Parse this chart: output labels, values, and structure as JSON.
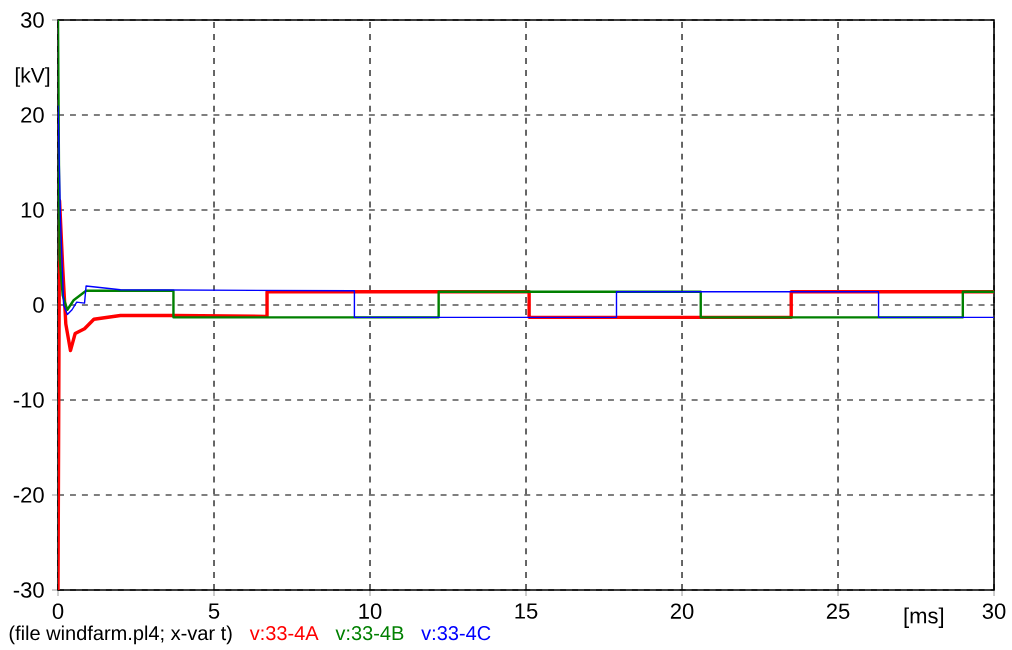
{
  "chart_data": {
    "type": "line",
    "ylabel": "[kV]",
    "xlabel": "[ms]",
    "annotations": [
      "(file windfarm.pl4; x-var t)"
    ],
    "xlim": [
      0,
      30
    ],
    "ylim": [
      -30,
      30
    ],
    "xticks": [
      0,
      5,
      10,
      15,
      20,
      25,
      30
    ],
    "yticks": [
      -30,
      -20,
      -10,
      0,
      10,
      20,
      30
    ],
    "grid": true,
    "legend": "bottom",
    "marker": "none",
    "line_style": "solid",
    "series": [
      {
        "name": "v:33-4A",
        "color": "#ff0000",
        "x": [
          0,
          0.05,
          0.15,
          0.25,
          0.4,
          0.55,
          0.85,
          1.15,
          2,
          3.7,
          6.7,
          6.7,
          15.1,
          15.1,
          23.5,
          23.5,
          30
        ],
        "values": [
          -30,
          11,
          4,
          -2,
          -4.8,
          -3,
          -2.5,
          -1.5,
          -1.1,
          -1.1,
          -1.2,
          1.4,
          1.4,
          -1.3,
          -1.3,
          1.4,
          1.4
        ]
      },
      {
        "name": "v:33-4B",
        "color": "#008000",
        "x": [
          0,
          0.05,
          0.15,
          0.3,
          0.5,
          0.9,
          3.7,
          3.7,
          12.2,
          12.2,
          20.6,
          20.6,
          29,
          29,
          30
        ],
        "values": [
          30,
          5,
          1,
          -0.5,
          0.5,
          1.5,
          1.5,
          -1.3,
          -1.3,
          1.4,
          1.4,
          -1.3,
          -1.3,
          1.4,
          1.4
        ]
      },
      {
        "name": "v:33-4C",
        "color": "#0000ff",
        "x": [
          0,
          0.08,
          0.18,
          0.3,
          0.45,
          0.6,
          0.85,
          0.9,
          2,
          9.5,
          9.5,
          17.9,
          17.9,
          26.3,
          26.3,
          30
        ],
        "values": [
          21,
          9,
          0,
          -1,
          -0.5,
          0.3,
          0.2,
          2,
          1.6,
          1.5,
          -1.3,
          -1.3,
          1.4,
          1.4,
          -1.3,
          -1.3
        ]
      }
    ]
  }
}
